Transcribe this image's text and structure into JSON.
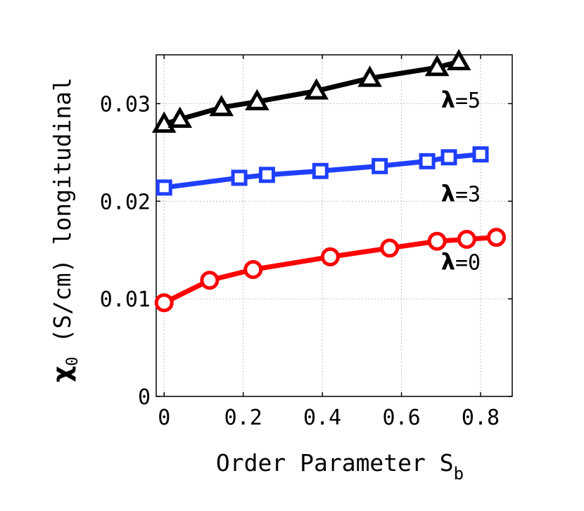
{
  "chart_data": {
    "type": "line",
    "xlabel_main": "Order Parameter S",
    "xlabel_sub": "b",
    "ylabel_symbol": "χ",
    "ylabel_sub": "0",
    "ylabel_rest": " (S/cm) longitudinal",
    "xlim": [
      -0.02,
      0.88
    ],
    "ylim": [
      0,
      0.035
    ],
    "xticks": [
      0,
      0.2,
      0.4,
      0.6,
      0.8
    ],
    "xtick_labels": [
      "0",
      "0.2",
      "0.4",
      "0.6",
      "0.8"
    ],
    "yticks": [
      0,
      0.01,
      0.02,
      0.03
    ],
    "ytick_labels": [
      "0",
      "0.01",
      "0.02",
      "0.03"
    ],
    "grid": true,
    "series": [
      {
        "name": "λ=5",
        "color": "#000000",
        "marker": "triangle",
        "x": [
          0.0,
          0.04,
          0.145,
          0.235,
          0.385,
          0.52,
          0.69,
          0.745
        ],
        "y": [
          0.0279,
          0.0284,
          0.0296,
          0.0302,
          0.0313,
          0.0326,
          0.0337,
          0.0343
        ]
      },
      {
        "name": "λ=3",
        "color": "#1f3fff",
        "marker": "square",
        "x": [
          0.0,
          0.19,
          0.26,
          0.395,
          0.545,
          0.665,
          0.72,
          0.8
        ],
        "y": [
          0.0214,
          0.0224,
          0.0227,
          0.0231,
          0.0236,
          0.0241,
          0.0245,
          0.0248
        ]
      },
      {
        "name": "λ=0",
        "color": "#ff0000",
        "marker": "circle",
        "x": [
          0.0,
          0.115,
          0.225,
          0.42,
          0.57,
          0.69,
          0.765,
          0.84
        ],
        "y": [
          0.0096,
          0.0119,
          0.013,
          0.0143,
          0.0152,
          0.0159,
          0.0161,
          0.0163
        ]
      }
    ],
    "annotations": [
      "λ=5",
      "λ=3",
      "λ=0"
    ]
  }
}
